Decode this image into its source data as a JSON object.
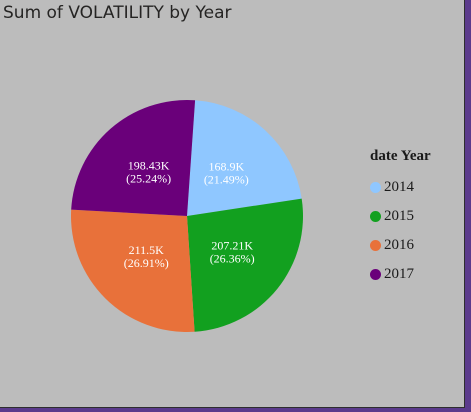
{
  "chart_data": {
    "type": "pie",
    "title": "Sum of VOLATILITY by Year",
    "legend_title": "date Year",
    "legend_position": "right",
    "categories": [
      "2014",
      "2015",
      "2016",
      "2017"
    ],
    "values": [
      168.9,
      207.21,
      211.5,
      198.43
    ],
    "value_labels": [
      "168.9K",
      "207.21K",
      "211.5K",
      "198.43K"
    ],
    "percent_labels": [
      "(21.49%)",
      "(26.36%)",
      "(26.91%)",
      "(25.24%)"
    ],
    "unit": "K",
    "colors": [
      "#8fc7ff",
      "#12a01f",
      "#e8713a",
      "#6a007a"
    ]
  }
}
